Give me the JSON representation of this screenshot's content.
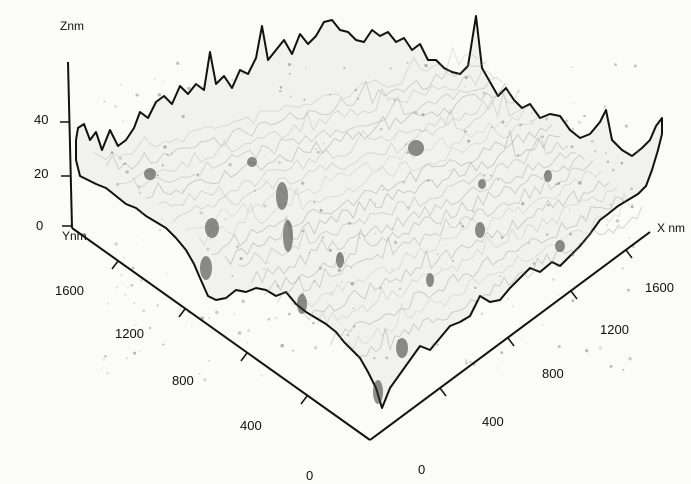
{
  "figure": {
    "type": "3d-surface",
    "colors": {
      "background": "#fbfbfa",
      "surface_fill": "#f1f1f0",
      "ink": "#111111",
      "shade": "#8a8a8a"
    },
    "z_axis": {
      "title": "Znm",
      "ticks": [
        "0",
        "20",
        "40"
      ]
    },
    "y_axis": {
      "title": "Ynm",
      "ticks": [
        "0",
        "400",
        "800",
        "1200",
        "1600"
      ]
    },
    "x_axis": {
      "title": "X nm",
      "ticks": [
        "0",
        "400",
        "800",
        "1200",
        "1600"
      ]
    }
  }
}
